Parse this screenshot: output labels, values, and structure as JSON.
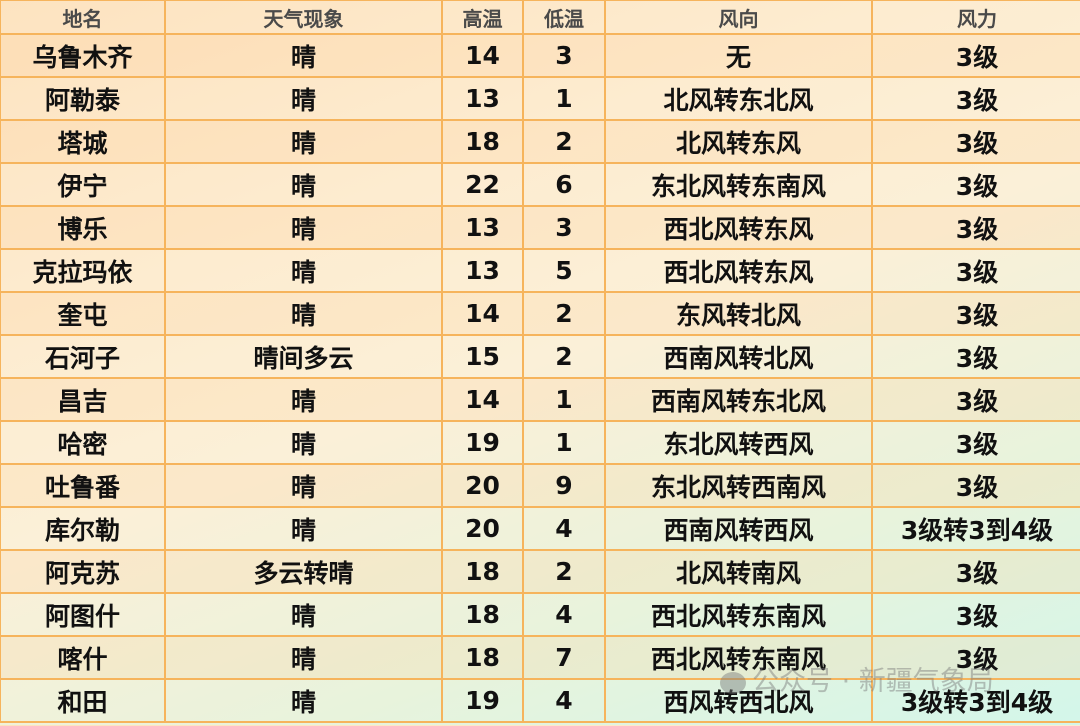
{
  "headers": [
    "地名",
    "天气现象",
    "高温",
    "低温",
    "风向",
    "风力"
  ],
  "rows": [
    [
      "乌鲁木齐",
      "晴",
      "14",
      "3",
      "无",
      "3级"
    ],
    [
      "阿勒泰",
      "晴",
      "13",
      "1",
      "北风转东北风",
      "3级"
    ],
    [
      "塔城",
      "晴",
      "18",
      "2",
      "北风转东风",
      "3级"
    ],
    [
      "伊宁",
      "晴",
      "22",
      "6",
      "东北风转东南风",
      "3级"
    ],
    [
      "博乐",
      "晴",
      "13",
      "3",
      "西北风转东风",
      "3级"
    ],
    [
      "克拉玛依",
      "晴",
      "13",
      "5",
      "西北风转东风",
      "3级"
    ],
    [
      "奎屯",
      "晴",
      "14",
      "2",
      "东风转北风",
      "3级"
    ],
    [
      "石河子",
      "晴间多云",
      "15",
      "2",
      "西南风转北风",
      "3级"
    ],
    [
      "昌吉",
      "晴",
      "14",
      "1",
      "西南风转东北风",
      "3级"
    ],
    [
      "哈密",
      "晴",
      "19",
      "1",
      "东北风转西风",
      "3级"
    ],
    [
      "吐鲁番",
      "晴",
      "20",
      "9",
      "东北风转西南风",
      "3级"
    ],
    [
      "库尔勒",
      "晴",
      "20",
      "4",
      "西南风转西风",
      "3级转3到4级"
    ],
    [
      "阿克苏",
      "多云转晴",
      "18",
      "2",
      "北风转南风",
      "3级"
    ],
    [
      "阿图什",
      "晴",
      "18",
      "4",
      "西北风转东南风",
      "3级"
    ],
    [
      "喀什",
      "晴",
      "18",
      "7",
      "西北风转东南风",
      "3级"
    ],
    [
      "和田",
      "晴",
      "19",
      "4",
      "西风转西北风",
      "3级转3到4级"
    ]
  ],
  "watermark": {
    "text": "公众号 · 新疆气象局",
    "icon": "wechat-icon"
  },
  "colors": {
    "border": "#f6b45c"
  }
}
